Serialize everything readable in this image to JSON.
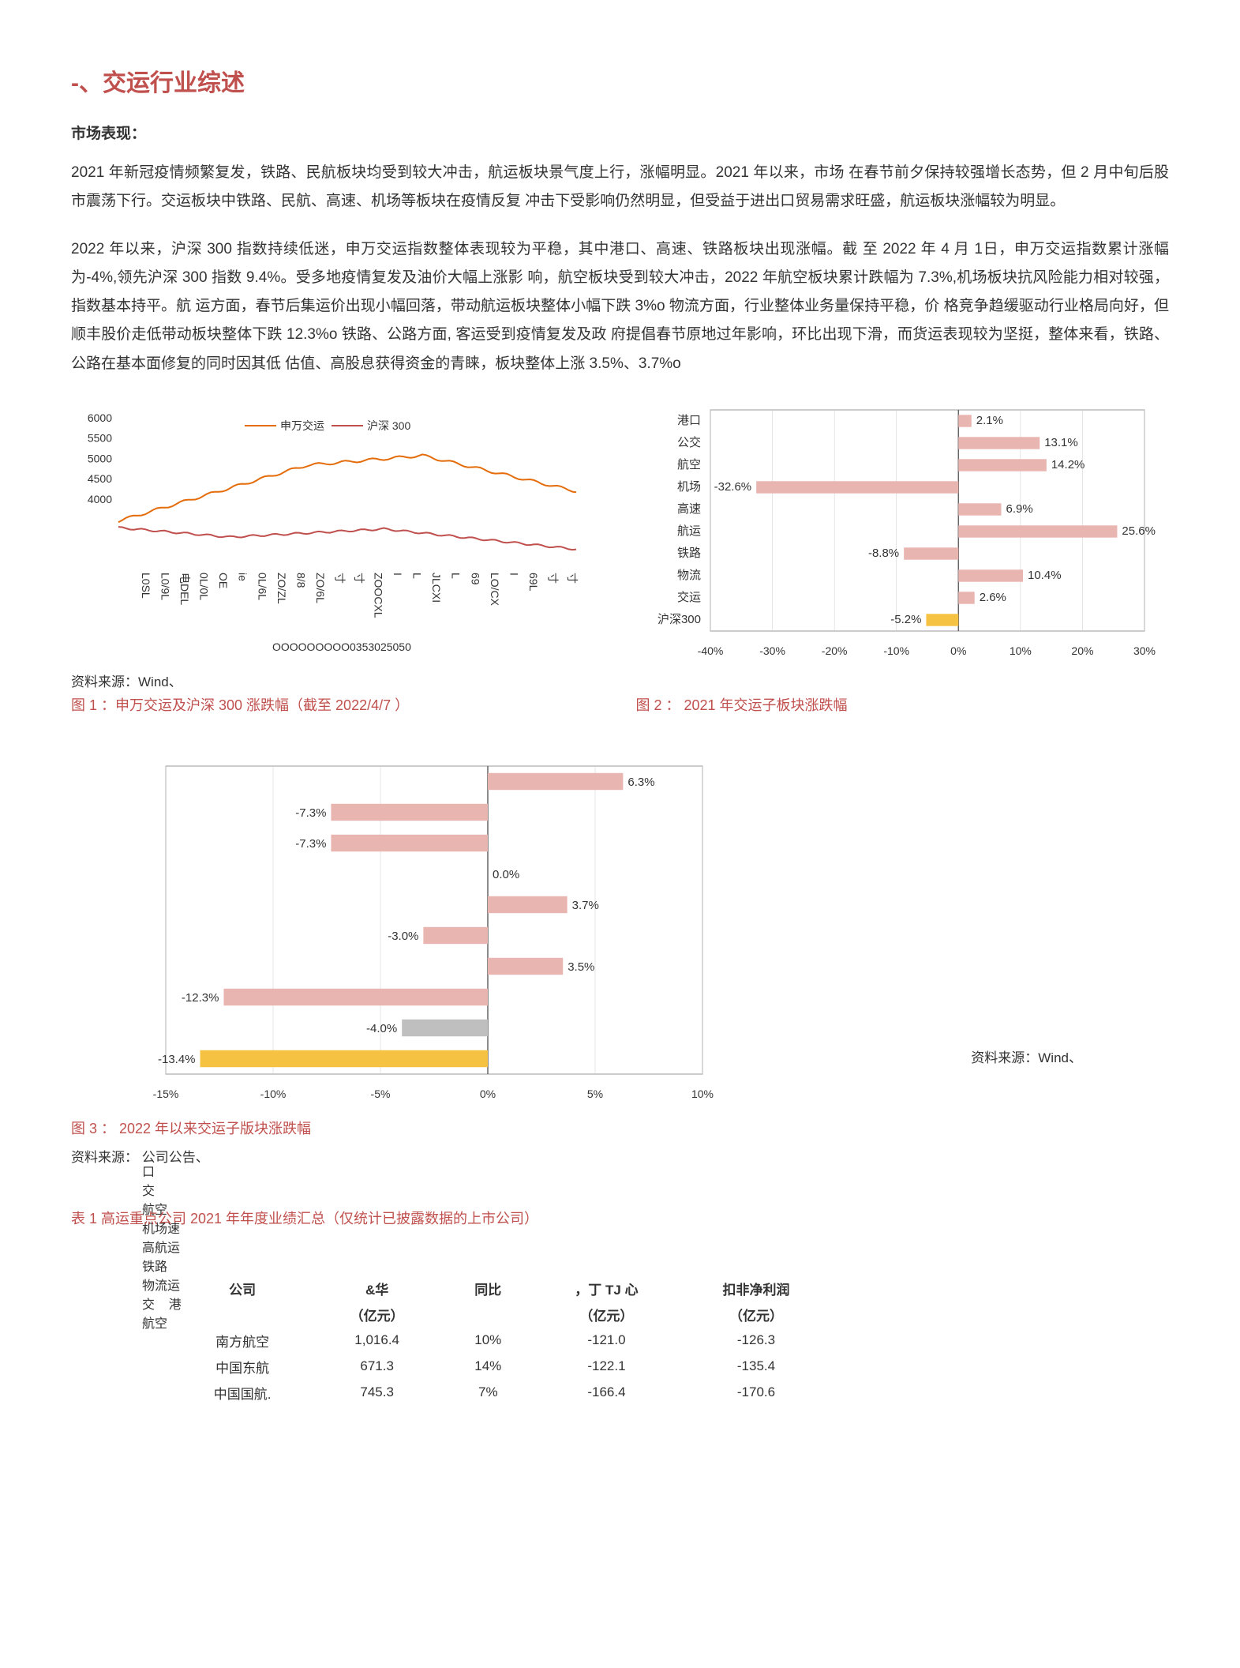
{
  "title": "-、交运行业综述",
  "section_label": "市场表现：",
  "para1": "2021 年新冠疫情频繁复发，铁路、民航板块均受到较大冲击，航运板块景气度上行，涨幅明显。2021 年以来，市场 在春节前夕保持较强增长态势，但 2 月中旬后股市震荡下行。交运板块中铁路、民航、高速、机场等板块在疫情反复 冲击下受影响仍然明显，但受益于进出口贸易需求旺盛，航运板块涨幅较为明显。",
  "para2": "2022 年以来，沪深 300 指数持续低迷，申万交运指数整体表现较为平稳，其中港口、高速、铁路板块出现涨幅。截 至 2022 年 4 月 1日，申万交运指数累计涨幅为-4%,领先沪深 300 指数 9.4%。受多地疫情复发及油价大幅上涨影 响，航空板块受到较大冲击，2022 年航空板块累计跌幅为 7.3%,机场板块抗风险能力相对较强，指数基本持平。航 运方面，春节后集运价出现小幅回落，带动航运板块整体小幅下跌 3%o 物流方面，行业整体业务量保持平稳，价 格竞争趋缓驱动行业格局向好，但顺丰股价走低带动板块整体下跌 12.3%o 铁路、公路方面,  客运受到疫情复发及政 府提倡春节原地过年影响，环比出现下滑，而货运表现较为坚挺，整体来看，铁路、公路在基本面修复的同时因其低 估值、高股息获得资金的青睐，板块整体上涨 3.5%、3.7%o",
  "source1": "资料来源：Wind、",
  "source2": "资料来源：Wind、",
  "source3": "资料来源： 公司公告、",
  "caption1": "图 1 ：申万交运及沪深 300 涨跌幅（截至 2022/4/7 ）",
  "caption2": "图 2 ： 2021 年交运子板块涨跌幅",
  "caption3": "图 3 ： 2022 年以来交运子版块涨跌幅",
  "chart1": {
    "legend": [
      "申万交运",
      "沪深 300"
    ],
    "yticks": [
      "6000",
      "5500",
      "5000",
      "4500",
      "4000"
    ],
    "colors": {
      "swjy": "#e46c0a",
      "hs300": "#c0504d"
    },
    "xlabels": "L0SL  L0/9L  电DEL 0L/0L OE  ie 0L/6L  ZO/ZL 8/8  ZO/6L 寸   寸  ZOOCXL I L  JLCXI L  69 LO/CX  I 69L  寸 寸"
  },
  "chart2": {
    "categories": [
      "港口",
      "公交",
      "航空",
      "机场",
      "高速",
      "航运",
      "铁路",
      "物流",
      "交运",
      "沪深300"
    ],
    "values": [
      2.1,
      13.1,
      14.2,
      -32.6,
      6.9,
      25.6,
      -8.8,
      10.4,
      2.6,
      -5.2
    ],
    "colors": [
      "#e9b5b1",
      "#e9b5b1",
      "#e9b5b1",
      "#e9b5b1",
      "#e9b5b1",
      "#e9b5b1",
      "#e9b5b1",
      "#e9b5b1",
      "#e9b5b1",
      "#f5c242"
    ],
    "xticks": [
      "-40%",
      "-30%",
      "-20%",
      "-10%",
      "0%",
      "10%",
      "20%",
      "30%"
    ],
    "xmin": -40,
    "xmax": 30
  },
  "chart3": {
    "labels_overlay": "口\n交\n航空\n机场速\n高航运\n铁路\n物流运\n交    港\n航空",
    "values": [
      6.3,
      -7.3,
      -7.3,
      0.0,
      3.7,
      -3.0,
      3.5,
      -12.3,
      -4.0,
      -13.4
    ],
    "colors": [
      "#e9b5b1",
      "#e9b5b1",
      "#e9b5b1",
      "#e9b5b1",
      "#e9b5b1",
      "#e9b5b1",
      "#e9b5b1",
      "#e9b5b1",
      "#bfbfbf",
      "#f5c242"
    ],
    "xticks": [
      "-15%",
      "-10%",
      "-5%",
      "0%",
      "5%",
      "10%"
    ],
    "xmin": -15,
    "xmax": 10
  },
  "table_caption": "表 1 高运重点公司 2021 年年度业绩汇总（仅统计已披露数据的上市公司）",
  "table": {
    "headers_row1": [
      "公司",
      "&华",
      "同比",
      "，丁 TJ 心",
      "扣非净利润"
    ],
    "headers_row2": [
      "",
      "（亿元）",
      "",
      "（亿元）",
      "（亿元）"
    ],
    "rows": [
      [
        "南方航空",
        "1,016.4",
        "10%",
        "-121.0",
        "-126.3"
      ],
      [
        "中国东航",
        "671.3",
        "14%",
        "-122.1",
        "-135.4"
      ],
      [
        "中国国航.",
        "745.3",
        "7%",
        "-166.4",
        "-170.6"
      ]
    ]
  }
}
